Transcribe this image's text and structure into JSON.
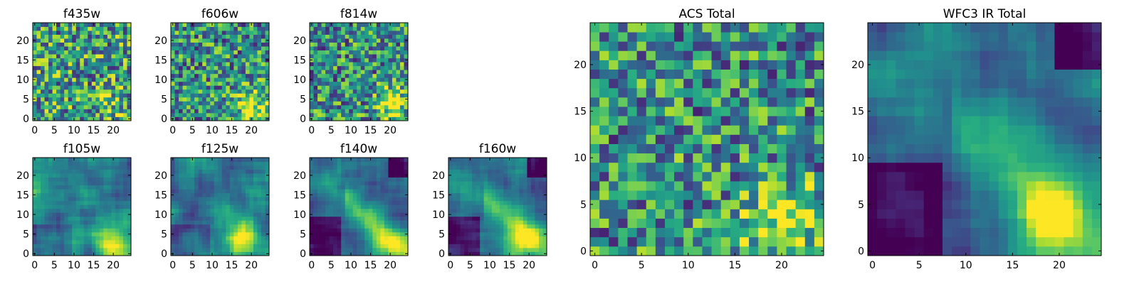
{
  "chart_data": [
    {
      "type": "heatmap",
      "title": "f435w",
      "grid_size": 25,
      "xlim": [
        0,
        24
      ],
      "ylim": [
        0,
        24
      ],
      "xticks": [
        0,
        5,
        10,
        15,
        20
      ],
      "yticks": [
        0,
        5,
        10,
        15,
        20
      ],
      "pattern": "noise",
      "bright_blob": [
        20,
        4
      ],
      "colormap": "viridis",
      "value_range": [
        0,
        1
      ]
    },
    {
      "type": "heatmap",
      "title": "f606w",
      "grid_size": 25,
      "xlim": [
        0,
        24
      ],
      "ylim": [
        0,
        24
      ],
      "xticks": [
        0,
        5,
        10,
        15,
        20
      ],
      "yticks": [
        0,
        5,
        10,
        15,
        20
      ],
      "pattern": "noise_blob",
      "bright_blob": [
        20,
        4
      ],
      "colormap": "viridis",
      "value_range": [
        0,
        1
      ]
    },
    {
      "type": "heatmap",
      "title": "f814w",
      "grid_size": 25,
      "xlim": [
        0,
        24
      ],
      "ylim": [
        0,
        24
      ],
      "xticks": [
        0,
        5,
        10,
        15,
        20
      ],
      "yticks": [
        0,
        5,
        10,
        15,
        20
      ],
      "pattern": "noise_blob",
      "bright_blob": [
        20,
        4
      ],
      "colormap": "viridis",
      "value_range": [
        0,
        1
      ]
    },
    {
      "type": "heatmap",
      "title": "f105w",
      "grid_size": 25,
      "xlim": [
        0,
        24
      ],
      "ylim": [
        0,
        24
      ],
      "xticks": [
        0,
        5,
        10,
        15,
        20
      ],
      "yticks": [
        0,
        5,
        10,
        15,
        20
      ],
      "pattern": "smooth",
      "bright_blob": [
        20,
        3
      ],
      "colormap": "viridis",
      "value_range": [
        0,
        1
      ]
    },
    {
      "type": "heatmap",
      "title": "f125w",
      "grid_size": 25,
      "xlim": [
        0,
        24
      ],
      "ylim": [
        0,
        24
      ],
      "xticks": [
        0,
        5,
        10,
        15,
        20
      ],
      "yticks": [
        0,
        5,
        10,
        15,
        20
      ],
      "pattern": "smooth",
      "bright_blob": [
        18,
        4
      ],
      "colormap": "viridis",
      "value_range": [
        0,
        1
      ]
    },
    {
      "type": "heatmap",
      "title": "f140w",
      "grid_size": 25,
      "xlim": [
        0,
        24
      ],
      "ylim": [
        0,
        24
      ],
      "xticks": [
        0,
        5,
        10,
        15,
        20
      ],
      "yticks": [
        0,
        5,
        10,
        15,
        20
      ],
      "pattern": "smooth_diag",
      "bright_blob": [
        19,
        3
      ],
      "colormap": "viridis",
      "value_range": [
        0,
        1
      ]
    },
    {
      "type": "heatmap",
      "title": "f160w",
      "grid_size": 25,
      "xlim": [
        0,
        24
      ],
      "ylim": [
        0,
        24
      ],
      "xticks": [
        0,
        5,
        10,
        15,
        20
      ],
      "yticks": [
        0,
        5,
        10,
        15,
        20
      ],
      "pattern": "smooth_diag",
      "bright_blob": [
        19,
        4
      ],
      "colormap": "viridis",
      "value_range": [
        0,
        1
      ]
    },
    {
      "type": "heatmap",
      "title": "ACS Total",
      "grid_size": 25,
      "xlim": [
        0,
        24
      ],
      "ylim": [
        0,
        24
      ],
      "xticks": [
        0,
        5,
        10,
        15,
        20
      ],
      "yticks": [
        0,
        5,
        10,
        15,
        20
      ],
      "pattern": "noise_blob",
      "bright_blob": [
        20,
        3
      ],
      "colormap": "viridis",
      "value_range": [
        0,
        1
      ]
    },
    {
      "type": "heatmap",
      "title": "WFC3 IR Total",
      "grid_size": 25,
      "xlim": [
        0,
        24
      ],
      "ylim": [
        0,
        24
      ],
      "xticks": [
        0,
        5,
        10,
        15,
        20
      ],
      "yticks": [
        0,
        5,
        10,
        15,
        20
      ],
      "pattern": "smooth_diag",
      "bright_blob": [
        19,
        4
      ],
      "colormap": "viridis",
      "value_range": [
        0,
        1
      ]
    }
  ]
}
